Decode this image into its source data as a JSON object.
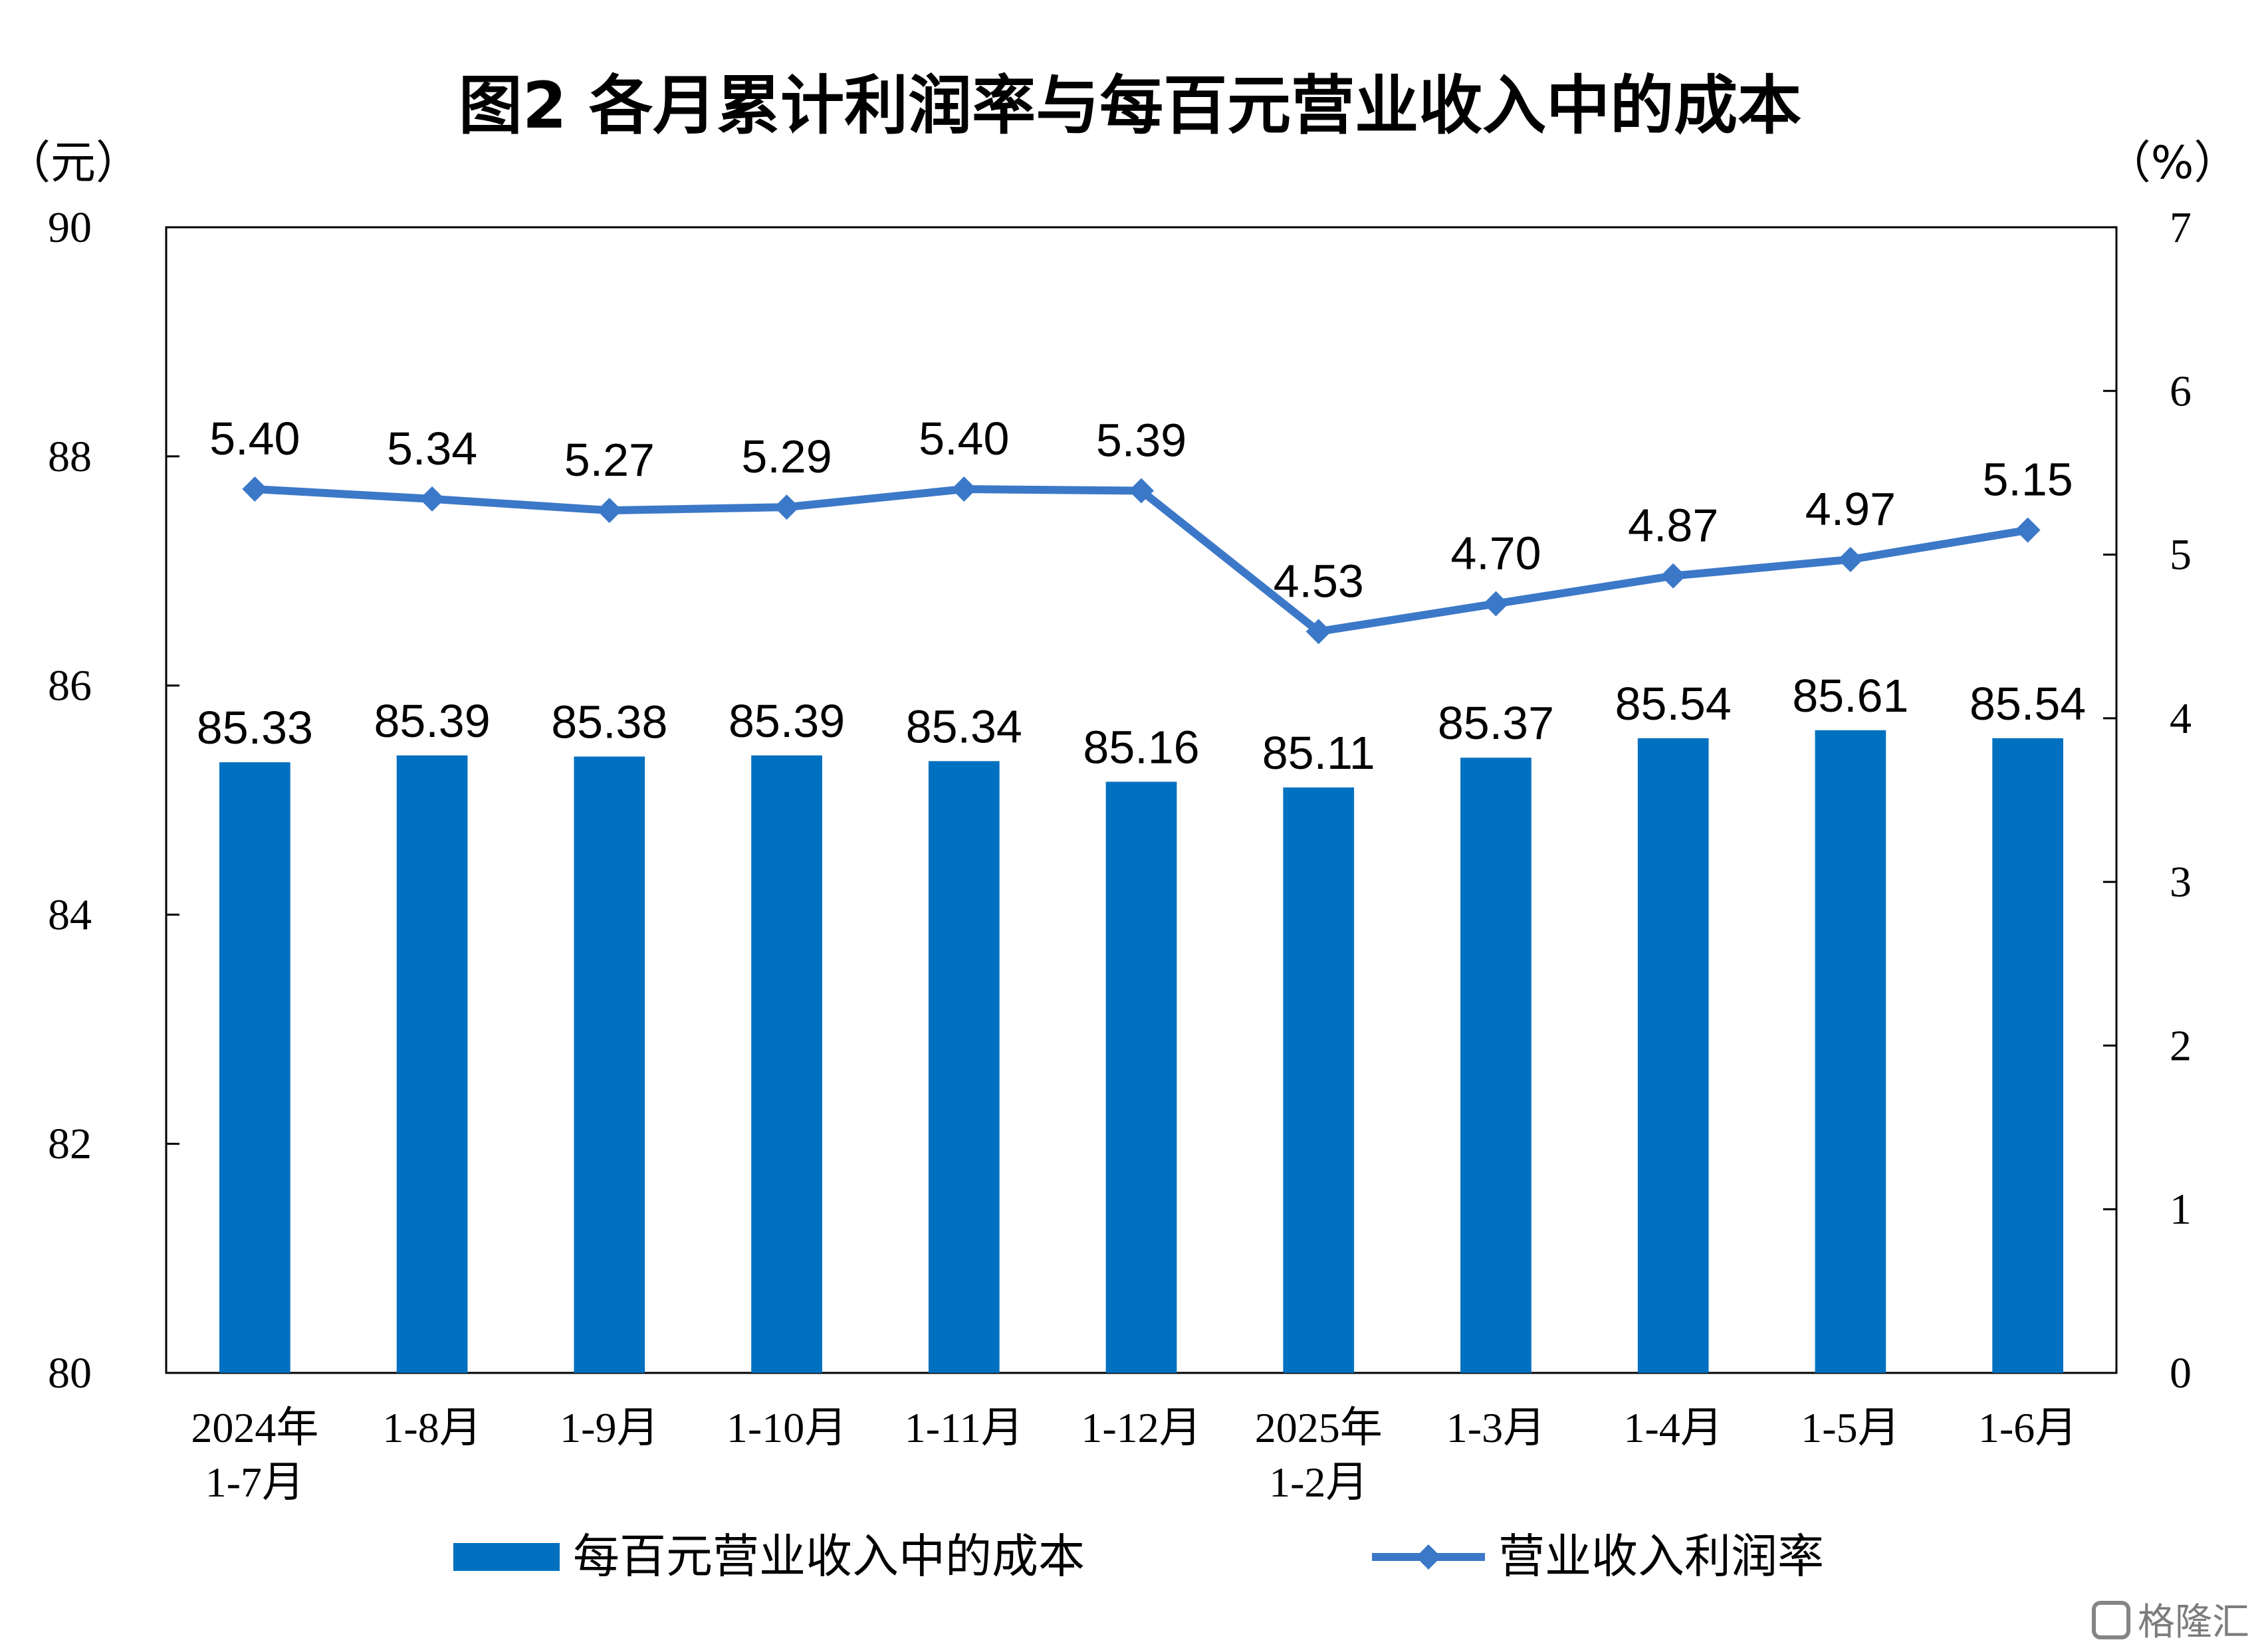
{
  "chart_data": {
    "type": "bar",
    "title": "图2  各月累计利润率与每百元营业收入中的成本",
    "left_axis": {
      "unit": "（元）",
      "range": [
        80,
        90
      ],
      "ticks": [
        "80",
        "82",
        "84",
        "86",
        "88",
        "90"
      ]
    },
    "right_axis": {
      "unit": "（%）",
      "range": [
        0,
        7
      ],
      "ticks": [
        "0",
        "1",
        "2",
        "3",
        "4",
        "5",
        "6",
        "7"
      ]
    },
    "categories": [
      [
        "2024年",
        "1-7月"
      ],
      [
        "1-8月"
      ],
      [
        "1-9月"
      ],
      [
        "1-10月"
      ],
      [
        "1-11月"
      ],
      [
        "1-12月"
      ],
      [
        "2025年",
        "1-2月"
      ],
      [
        "1-3月"
      ],
      [
        "1-4月"
      ],
      [
        "1-5月"
      ],
      [
        "1-6月"
      ]
    ],
    "series": [
      {
        "name": "每百元营业收入中的成本",
        "type": "bar",
        "axis": "left",
        "color": "#0070C0",
        "values": [
          85.33,
          85.39,
          85.38,
          85.39,
          85.34,
          85.16,
          85.11,
          85.37,
          85.54,
          85.61,
          85.54
        ],
        "labels": [
          "85.33",
          "85.39",
          "85.38",
          "85.39",
          "85.34",
          "85.16",
          "85.11",
          "85.37",
          "85.54",
          "85.61",
          "85.54"
        ]
      },
      {
        "name": "营业收入利润率",
        "type": "line",
        "axis": "right",
        "color": "#3C78C8",
        "values": [
          5.4,
          5.34,
          5.27,
          5.29,
          5.4,
          5.39,
          4.53,
          4.7,
          4.87,
          4.97,
          5.15
        ],
        "labels": [
          "5.40",
          "5.34",
          "5.27",
          "5.29",
          "5.40",
          "5.39",
          "4.53",
          "4.70",
          "4.87",
          "4.97",
          "5.15"
        ]
      }
    ],
    "grid": false,
    "legend": "bottom"
  },
  "watermark": "格隆汇"
}
